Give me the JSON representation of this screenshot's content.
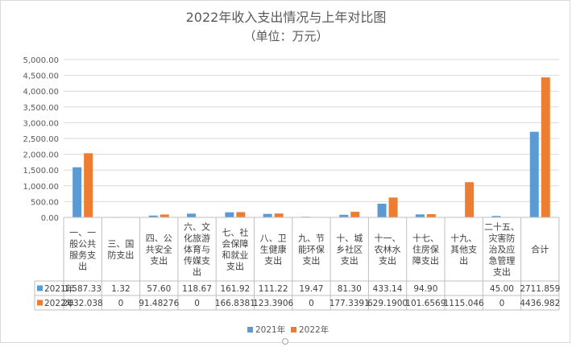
{
  "chart_data": {
    "type": "bar",
    "title": "2022年收入支出情况与上年对比图",
    "subtitle": "（单位：万元）",
    "categories": [
      [
        "一、一",
        "般公共",
        "服务支",
        "出"
      ],
      [
        "三、国",
        "防支出"
      ],
      [
        "四、公",
        "共安全",
        "支出"
      ],
      [
        "六、文",
        "化旅游",
        "体育与",
        "传媒支",
        "出"
      ],
      [
        "七、社",
        "会保障",
        "和就业",
        "支出"
      ],
      [
        "八、卫",
        "生健康",
        "支出"
      ],
      [
        "九、节",
        "能环保",
        "支出"
      ],
      [
        "十、城",
        "乡社区",
        "支出"
      ],
      [
        "十一、",
        "农林水",
        "支出"
      ],
      [
        "十七、",
        "住房保",
        "障支出"
      ],
      [
        "十九、",
        "其他支",
        "出"
      ],
      [
        "二十五、",
        "灾害防",
        "治及应",
        "急管理",
        "支出"
      ],
      [
        "合计"
      ]
    ],
    "series": [
      {
        "name": "2021年",
        "color": "#5b9bd5",
        "values": [
          1587.33,
          1.32,
          57.6,
          118.67,
          161.92,
          111.22,
          19.47,
          81.3,
          433.14,
          94.9,
          null,
          45.0,
          2711.859
        ],
        "labels": [
          "1,587.33",
          "1.32",
          "57.60",
          "118.67",
          "161.92",
          "111.22",
          "19.47",
          "81.30",
          "433.14",
          "94.90",
          "",
          "45.00",
          "2711.859"
        ]
      },
      {
        "name": "2022年",
        "color": "#ed7d31",
        "values": [
          2032.038,
          0,
          91.48276,
          0,
          166.8381,
          123.3906,
          0,
          177.3391,
          629.19,
          101.6569,
          1115.046,
          0,
          4436.982
        ],
        "labels": [
          "2032.038",
          "0",
          "91.48276",
          "0",
          "166.8381",
          "123.3906",
          "0",
          "177.3391",
          "629.1900",
          "101.6569",
          "1115.046",
          "0",
          "4436.982"
        ]
      }
    ],
    "y_ticks": [
      "5,000.00",
      "4,500.00",
      "4,000.00",
      "3,500.00",
      "3,000.00",
      "2,500.00",
      "2,000.00",
      "1,500.00",
      "1,000.00",
      "500.00",
      "0.00"
    ],
    "ylim": [
      0,
      5000
    ],
    "grid": true,
    "legend": "bottom",
    "data_table": true
  }
}
